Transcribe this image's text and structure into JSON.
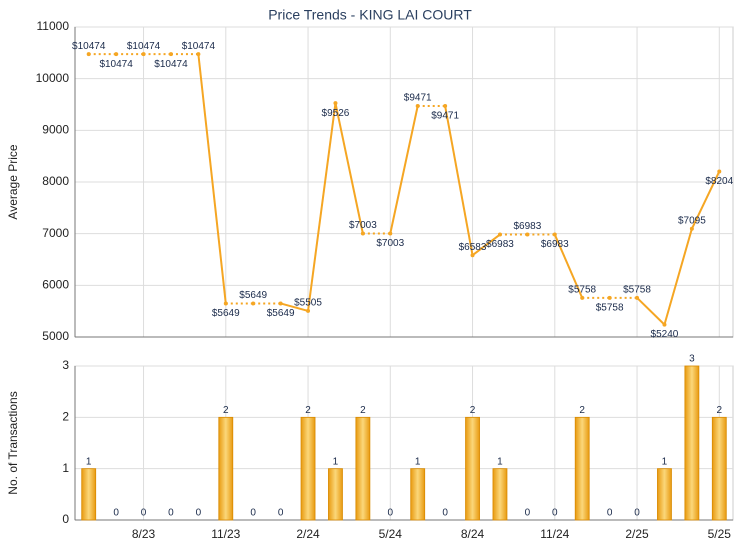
{
  "chart_data": [
    {
      "type": "line",
      "title": "Price Trends - KING LAI COURT",
      "y_label": "Average Price",
      "values": [
        10474,
        10474,
        10474,
        10474,
        10474,
        5649,
        5649,
        5649,
        5505,
        9526,
        7003,
        7003,
        9471,
        9471,
        6583,
        6983,
        6983,
        6983,
        5758,
        5758,
        5758,
        5240,
        7095,
        8204
      ],
      "value_labels": [
        "$10474",
        "$10474",
        "$10474",
        "$10474",
        "$10474",
        "$5649",
        "$5649",
        "$5649",
        "$5505",
        "$9526",
        "$7003",
        "$7003",
        "$9471",
        "$9471",
        "$6583",
        "$6983",
        "$6983",
        "$6983",
        "$5758",
        "$5758",
        "$5758",
        "$5240",
        "$7095",
        "$8204"
      ],
      "ylim": [
        5000,
        11000
      ],
      "yticks": [
        5000,
        6000,
        7000,
        8000,
        9000,
        10000,
        11000
      ],
      "color": "#f5a623",
      "grid": true
    },
    {
      "type": "bar",
      "y_label": "No. of Transactions",
      "categories": [
        null,
        null,
        "8/23",
        null,
        null,
        "11/23",
        null,
        null,
        "2/24",
        null,
        null,
        "5/24",
        null,
        null,
        "8/24",
        null,
        null,
        "11/24",
        null,
        null,
        "2/25",
        null,
        null,
        "5/25"
      ],
      "values": [
        1,
        0,
        0,
        0,
        0,
        2,
        0,
        0,
        2,
        1,
        2,
        0,
        1,
        0,
        2,
        1,
        0,
        0,
        2,
        0,
        0,
        1,
        3,
        2
      ],
      "ylim": [
        0,
        3
      ],
      "yticks": [
        0,
        1,
        2,
        3
      ],
      "color": "#f5a623",
      "grid": true
    }
  ]
}
